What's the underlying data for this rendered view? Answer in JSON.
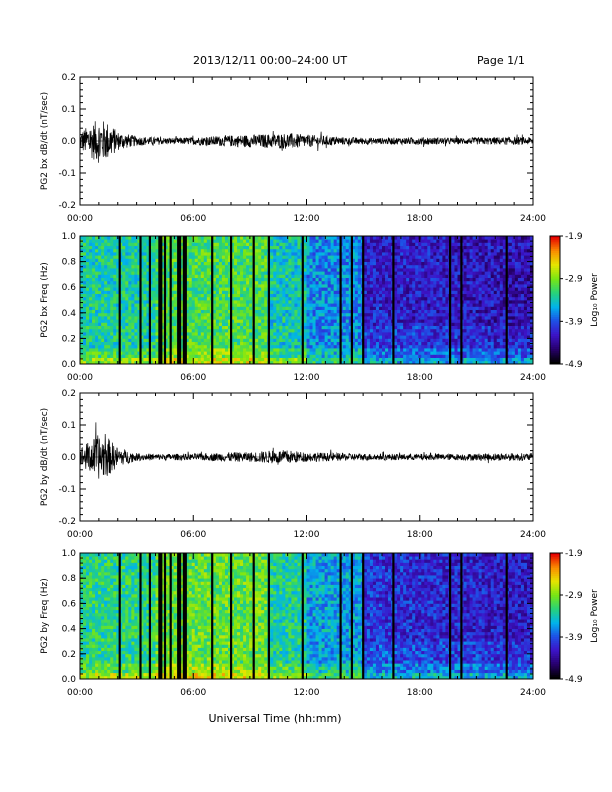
{
  "header": {
    "title": "2013/12/11  00:00–24:00 UT",
    "page": "Page 1/1"
  },
  "chart_data": [
    {
      "type": "line",
      "ylabel": "PG2 bx dB/dt (nT/sec)",
      "xlim": [
        0,
        24
      ],
      "ylim": [
        -0.2,
        0.2
      ],
      "x_ticks": [
        "00:00",
        "06:00",
        "12:00",
        "18:00",
        "24:00"
      ],
      "y_ticks": [
        "0.2",
        "0.1",
        "0.0",
        "-0.1",
        "-0.2"
      ],
      "envelope": {
        "hours": [
          0,
          0.5,
          1,
          1.5,
          2,
          3,
          4,
          5,
          6,
          7,
          8,
          9,
          10,
          11,
          12,
          14,
          16,
          18,
          20,
          22,
          24
        ],
        "amplitude": [
          0.03,
          0.05,
          0.07,
          0.06,
          0.03,
          0.015,
          0.012,
          0.01,
          0.012,
          0.015,
          0.018,
          0.02,
          0.022,
          0.025,
          0.02,
          0.012,
          0.01,
          0.012,
          0.01,
          0.012,
          0.012
        ]
      }
    },
    {
      "type": "heatmap",
      "ylabel": "PG2 bx Freq (Hz)",
      "xlim": [
        0,
        24
      ],
      "ylim": [
        0,
        1
      ],
      "x_ticks": [
        "00:00",
        "06:00",
        "12:00",
        "18:00",
        "24:00"
      ],
      "y_ticks": [
        "1.0",
        "0.8",
        "0.6",
        "0.4",
        "0.2",
        "0.0"
      ],
      "colorbar": {
        "label": "Log₁₀ Power",
        "min": -4.9,
        "max": -1.9,
        "ticks": [
          "-1.9",
          "-2.9",
          "-3.9",
          "-4.9"
        ]
      },
      "data_gaps_hours": [
        2.1,
        3.2,
        3.7,
        4.2,
        4.3,
        4.5,
        4.8,
        5.2,
        5.3,
        5.5,
        5.6,
        7.0,
        8.0,
        9.2,
        10.0,
        11.8,
        13.8,
        14.4,
        15.0,
        16.6,
        19.6,
        20.2,
        22.6
      ]
    },
    {
      "type": "line",
      "ylabel": "PG2 by dB/dt (nT/sec)",
      "xlim": [
        0,
        24
      ],
      "ylim": [
        -0.2,
        0.2
      ],
      "x_ticks": [
        "00:00",
        "06:00",
        "12:00",
        "18:00",
        "24:00"
      ],
      "y_ticks": [
        "0.2",
        "0.1",
        "0.0",
        "-0.1",
        "-0.2"
      ],
      "envelope": {
        "hours": [
          0,
          0.5,
          1,
          1.5,
          2,
          3,
          4,
          5,
          6,
          7,
          8,
          9,
          10,
          11,
          12,
          14,
          16,
          18,
          20,
          22,
          24
        ],
        "amplitude": [
          0.03,
          0.05,
          0.07,
          0.06,
          0.03,
          0.012,
          0.01,
          0.01,
          0.01,
          0.012,
          0.015,
          0.015,
          0.02,
          0.022,
          0.015,
          0.012,
          0.01,
          0.01,
          0.01,
          0.012,
          0.012
        ]
      }
    },
    {
      "type": "heatmap",
      "ylabel": "PG2 by Freq (Hz)",
      "xlim": [
        0,
        24
      ],
      "ylim": [
        0,
        1
      ],
      "x_ticks": [
        "00:00",
        "06:00",
        "12:00",
        "18:00",
        "24:00"
      ],
      "y_ticks": [
        "1.0",
        "0.8",
        "0.6",
        "0.4",
        "0.2",
        "0.0"
      ],
      "colorbar": {
        "label": "Log₁₀ Power",
        "min": -4.9,
        "max": -1.9,
        "ticks": [
          "-1.9",
          "-2.9",
          "-3.9",
          "-4.9"
        ]
      },
      "data_gaps_hours": [
        2.1,
        3.2,
        3.7,
        4.2,
        4.3,
        4.5,
        4.8,
        5.2,
        5.3,
        5.5,
        5.6,
        7.0,
        8.0,
        9.2,
        10.0,
        11.8,
        13.8,
        14.4,
        15.0,
        16.6,
        19.6,
        20.2,
        22.6
      ]
    }
  ],
  "xlabel": "Universal Time (hh:mm)"
}
